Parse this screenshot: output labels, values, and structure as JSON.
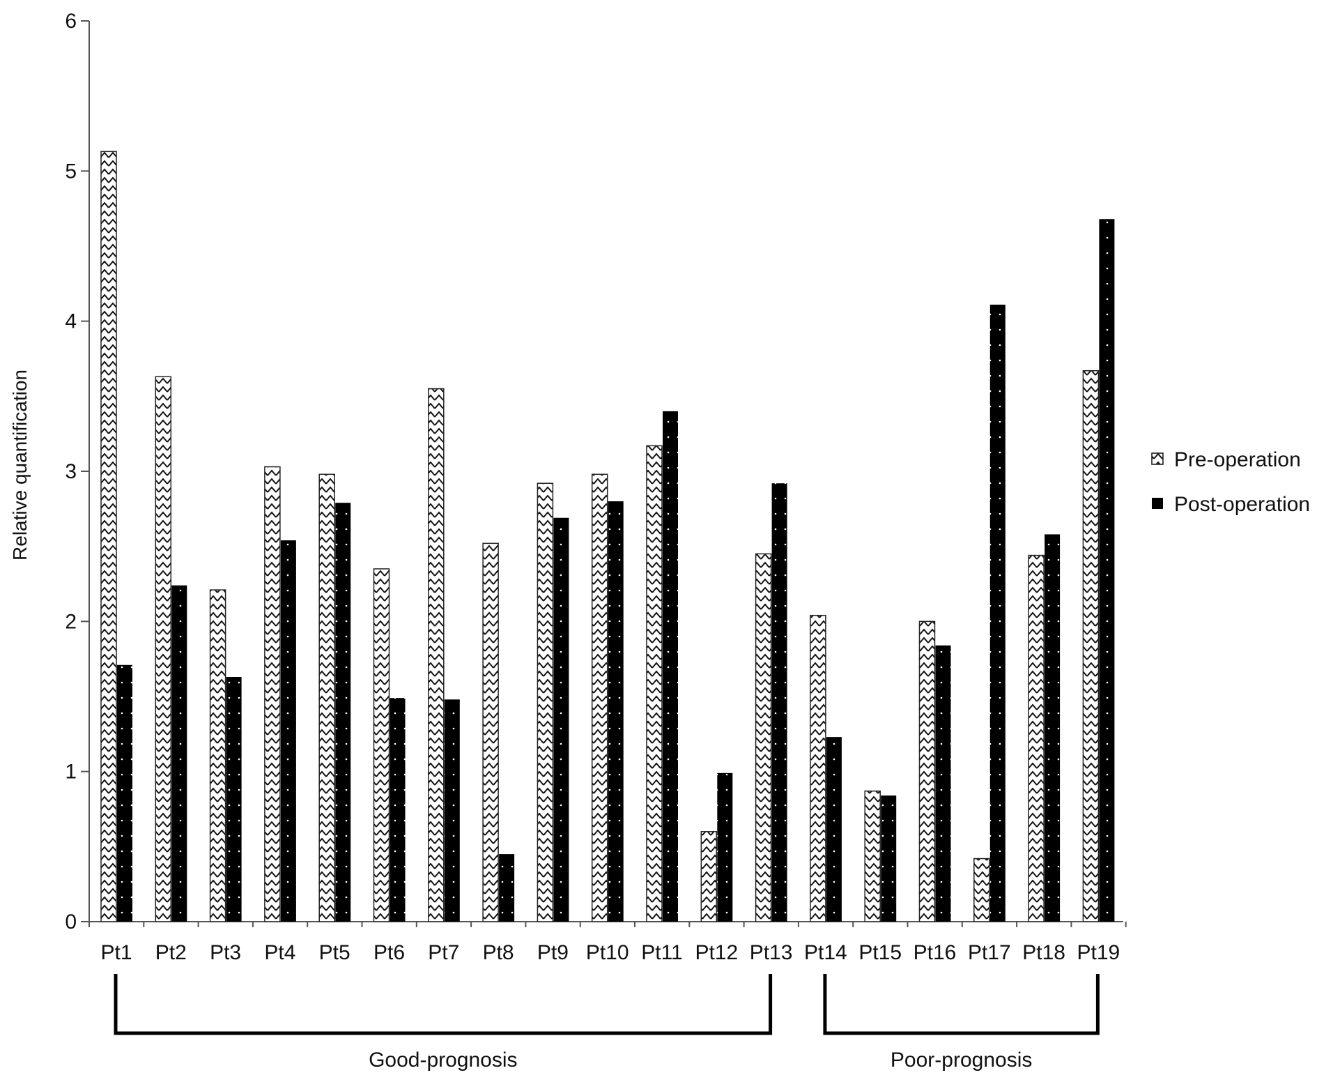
{
  "chart_data": {
    "type": "bar",
    "categories": [
      "Pt1",
      "Pt2",
      "Pt3",
      "Pt4",
      "Pt5",
      "Pt6",
      "Pt7",
      "Pt8",
      "Pt9",
      "Pt10",
      "Pt11",
      "Pt12",
      "Pt13",
      "Pt14",
      "Pt15",
      "Pt16",
      "Pt17",
      "Pt18",
      "Pt19"
    ],
    "series": [
      {
        "name": "Pre-operation",
        "pattern": "chevron",
        "values": [
          5.13,
          3.63,
          2.21,
          3.03,
          2.98,
          2.35,
          3.55,
          2.52,
          2.92,
          2.98,
          3.17,
          0.6,
          2.45,
          2.04,
          0.87,
          2.0,
          0.42,
          2.44,
          3.67
        ]
      },
      {
        "name": "Post-operation",
        "pattern": "dotted-black",
        "values": [
          1.71,
          2.24,
          1.63,
          2.54,
          2.79,
          1.49,
          1.48,
          0.45,
          2.69,
          2.8,
          3.4,
          0.99,
          2.92,
          1.23,
          0.84,
          1.84,
          4.11,
          2.58,
          4.68
        ]
      }
    ],
    "ylabel": "Relative quantification",
    "xlabel": "",
    "ylim": [
      0,
      6
    ],
    "yticks": [
      0,
      1,
      2,
      3,
      4,
      5,
      6
    ],
    "grid": false,
    "legend": "right",
    "groups": [
      {
        "label": "Good-prognosis",
        "from": "Pt1",
        "to": "Pt13"
      },
      {
        "label": "Poor-prognosis",
        "from": "Pt14",
        "to": "Pt19"
      }
    ],
    "colors": {
      "post_fill": "#000000",
      "pre_fill": "#ffffff",
      "axis": "#555555"
    }
  }
}
